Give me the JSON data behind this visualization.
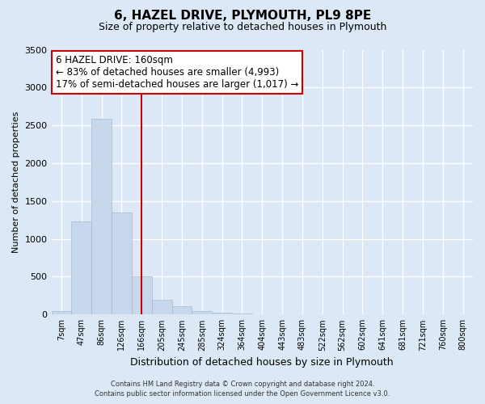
{
  "title": "6, HAZEL DRIVE, PLYMOUTH, PL9 8PE",
  "subtitle": "Size of property relative to detached houses in Plymouth",
  "xlabel": "Distribution of detached houses by size in Plymouth",
  "ylabel": "Number of detached properties",
  "bar_labels": [
    "7sqm",
    "47sqm",
    "86sqm",
    "126sqm",
    "166sqm",
    "205sqm",
    "245sqm",
    "285sqm",
    "324sqm",
    "364sqm",
    "404sqm",
    "443sqm",
    "483sqm",
    "522sqm",
    "562sqm",
    "602sqm",
    "641sqm",
    "681sqm",
    "721sqm",
    "760sqm",
    "800sqm"
  ],
  "bar_values": [
    50,
    1230,
    2590,
    1350,
    500,
    195,
    105,
    50,
    25,
    15,
    5,
    2,
    2,
    0,
    0,
    0,
    0,
    0,
    0,
    0,
    0
  ],
  "bar_color": "#c8d8ec",
  "bar_edge_color": "#a8b8cc",
  "vline_x_index": 4,
  "vline_color": "#cc0000",
  "ylim": [
    0,
    3500
  ],
  "yticks": [
    0,
    500,
    1000,
    1500,
    2000,
    2500,
    3000,
    3500
  ],
  "annotation_title": "6 HAZEL DRIVE: 160sqm",
  "annotation_line1": "← 83% of detached houses are smaller (4,993)",
  "annotation_line2": "17% of semi-detached houses are larger (1,017) →",
  "annotation_box_color": "#ffffff",
  "annotation_box_edge": "#cc0000",
  "footer_line1": "Contains HM Land Registry data © Crown copyright and database right 2024.",
  "footer_line2": "Contains public sector information licensed under the Open Government Licence v3.0.",
  "bg_color": "#dce8f5",
  "plot_bg_color": "#dce8f5",
  "grid_color": "#ffffff"
}
